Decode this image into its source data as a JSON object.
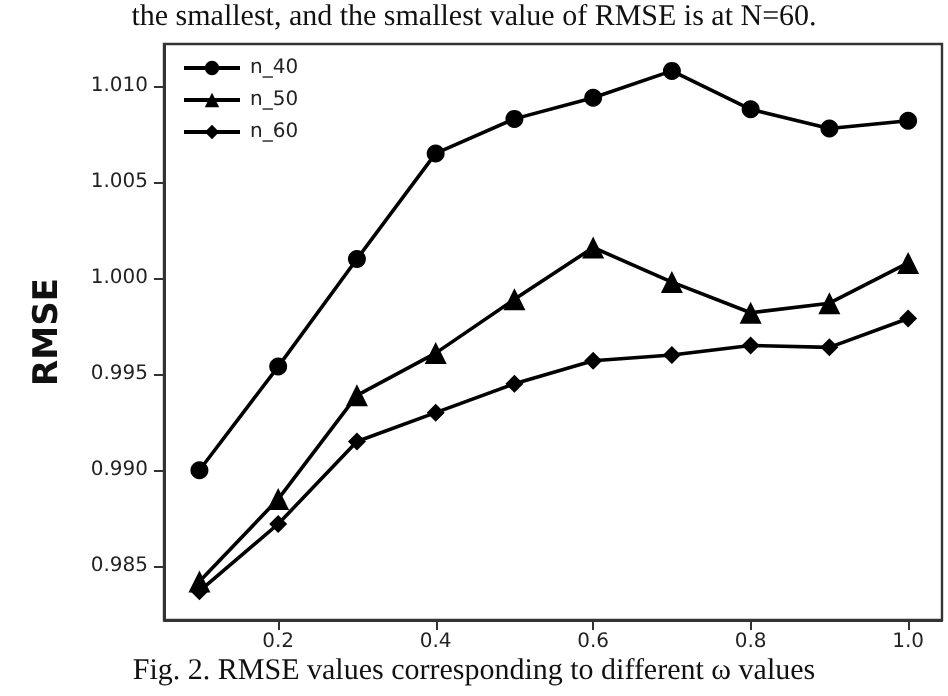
{
  "chart_data": {
    "type": "line",
    "ylabel": "RMSE",
    "x": [
      0.1,
      0.2,
      0.3,
      0.4,
      0.5,
      0.6,
      0.7,
      0.8,
      0.9,
      1.0
    ],
    "series": [
      {
        "name": "n_40",
        "color": "#000000",
        "marker": "circle",
        "values": [
          0.99,
          0.9954,
          1.001,
          1.0065,
          1.0083,
          1.0094,
          1.0108,
          1.0088,
          1.0078,
          1.0082
        ]
      },
      {
        "name": "n_50",
        "color": "#000000",
        "marker": "triangle",
        "values": [
          0.9842,
          0.9885,
          0.9939,
          0.9961,
          0.9989,
          1.0016,
          0.9998,
          0.9982,
          0.9987,
          1.0008
        ]
      },
      {
        "name": "n_60",
        "color": "#000000",
        "marker": "diamond",
        "values": [
          0.9837,
          0.9872,
          0.9915,
          0.993,
          0.9945,
          0.9957,
          0.996,
          0.9965,
          0.9964,
          0.9979
        ]
      }
    ],
    "xlim": [
      0.055,
      1.043
    ],
    "xticks": [
      0.2,
      0.4,
      0.6,
      0.8,
      {
        "value": 1,
        "label": "1.0"
      }
    ],
    "ylim": [
      0.9822,
      1.0122
    ],
    "yticks": [
      0.985,
      {
        "value": 0.99,
        "label": "0.990"
      },
      0.995,
      {
        "value": 1,
        "label": "1.000"
      },
      1.005,
      {
        "value": 1.01,
        "label": "1.010"
      }
    ],
    "grid": false,
    "legend": "top left",
    "line_style": "solid",
    "annotations": [
      "the smallest, and the smallest value of RMSE is at N=60.",
      "Fig. 2. RMSE values corresponding to different ω values"
    ]
  }
}
